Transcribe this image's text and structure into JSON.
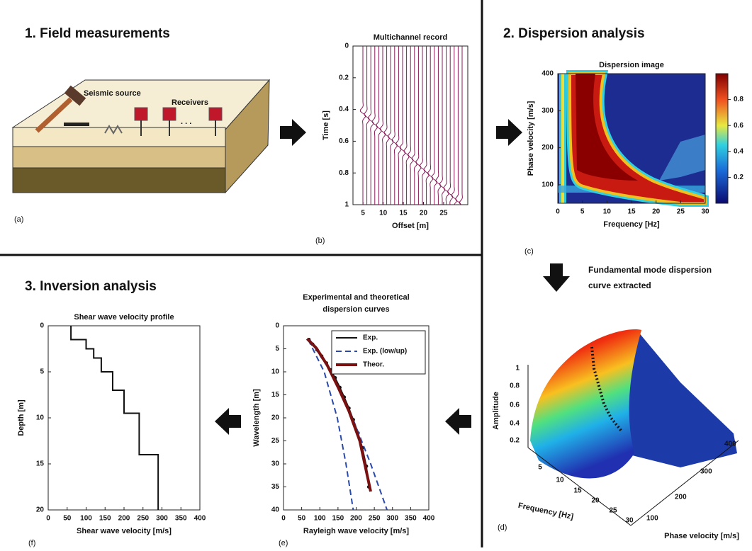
{
  "sections": {
    "field": "1. Field measurements",
    "dispersion": "2. Dispersion analysis",
    "inversion": "3. Inversion analysis"
  },
  "field_setup": {
    "source": "Seismic source",
    "receivers": "Receivers",
    "ellipsis": ". . ."
  },
  "panel_tags": {
    "a": "(a)",
    "b": "(b)",
    "c": "(c)",
    "d": "(d)",
    "e": "(e)",
    "f": "(f)"
  },
  "extraction_note": [
    "Fundamental mode dispersion",
    "curve extracted"
  ],
  "surface_3d": {
    "z_label": "Amplitude",
    "z_ticks": [
      0.2,
      0.4,
      0.6,
      0.8,
      1
    ],
    "x_label": "Frequency [Hz]",
    "x_ticks": [
      5,
      10,
      15,
      20,
      25,
      30
    ],
    "y_label": "Phase velocity [m/s]",
    "y_ticks": [
      100,
      200,
      300,
      400
    ]
  },
  "chart_data": [
    {
      "type": "wiggle",
      "title": "Multichannel record",
      "x_label": "Offset [m]",
      "y_label": "Time [s]",
      "xlim": [
        2.5,
        31
      ],
      "xticks": [
        5,
        10,
        15,
        20,
        25
      ],
      "ylim": [
        0,
        1
      ],
      "yticks": [
        0,
        0.2,
        0.4,
        0.6,
        0.8,
        1
      ],
      "y_reversed": true,
      "color": "#8a1a5a"
    },
    {
      "type": "heatmap",
      "title": "Dispersion image",
      "x_label": "Frequency [Hz]",
      "y_label": "Phase velocity [m/s]",
      "xlim": [
        0,
        30
      ],
      "xticks": [
        0,
        5,
        10,
        15,
        20,
        25,
        30
      ],
      "ylim": [
        50,
        400
      ],
      "yticks": [
        100,
        200,
        300,
        400
      ],
      "colorbar": {
        "lim": [
          0,
          1
        ],
        "ticks": [
          0.2,
          0.4,
          0.6,
          0.8
        ]
      }
    },
    {
      "type": "line",
      "title": [
        "Experimental and theoretical",
        "dispersion curves"
      ],
      "x_label": "Rayleigh wave velocity [m/s]",
      "y_label": "Wavelength [m]",
      "xlim": [
        0,
        400
      ],
      "xticks": [
        0,
        50,
        100,
        150,
        200,
        250,
        300,
        350,
        400
      ],
      "ylim": [
        0,
        40
      ],
      "yticks": [
        0,
        5,
        10,
        15,
        20,
        25,
        30,
        35,
        40
      ],
      "y_reversed": true,
      "series": [
        {
          "name": "Exp.",
          "color": "#111111",
          "markers": true,
          "x": [
            70,
            80,
            92,
            105,
            118,
            130,
            142,
            155,
            167,
            180,
            192,
            205,
            217,
            228,
            235
          ],
          "values": [
            3,
            4,
            5.2,
            6.6,
            8.1,
            9.6,
            11.3,
            13.4,
            15.5,
            17.9,
            20.4,
            23.3,
            26.5,
            30.5,
            35
          ]
        },
        {
          "name": "Exp. (low/up)",
          "color": "#2a4aa8",
          "dashed": true,
          "values": [
            3,
            10,
            20,
            30,
            40
          ],
          "x_low": [
            68,
            112,
            148,
            172,
            192
          ],
          "x_up": [
            72,
            130,
            190,
            240,
            285
          ]
        },
        {
          "name": "Theor.",
          "color": "#7a1010",
          "x": [
            65,
            90,
            120,
            150,
            180,
            210,
            240
          ],
          "values": [
            2.8,
            4.8,
            8.5,
            13.3,
            18.5,
            25,
            36
          ]
        }
      ]
    },
    {
      "type": "line",
      "title": "Shear wave velocity profile",
      "x_label": "Shear wave velocity [m/s]",
      "y_label": "Depth [m]",
      "xlim": [
        0,
        400
      ],
      "xticks": [
        0,
        50,
        100,
        150,
        200,
        250,
        300,
        350,
        400
      ],
      "ylim": [
        0,
        20
      ],
      "yticks": [
        0,
        5,
        10,
        15,
        20
      ],
      "y_reversed": true,
      "series": [
        {
          "name": null,
          "color": "#111111",
          "x": [
            60,
            60,
            100,
            100,
            120,
            120,
            140,
            140,
            170,
            170,
            200,
            200,
            240,
            240,
            290,
            290
          ],
          "values": [
            0,
            1.5,
            1.5,
            2.5,
            2.5,
            3.5,
            3.5,
            5,
            5,
            7,
            7,
            9.5,
            9.5,
            14,
            14,
            20
          ]
        }
      ]
    }
  ]
}
